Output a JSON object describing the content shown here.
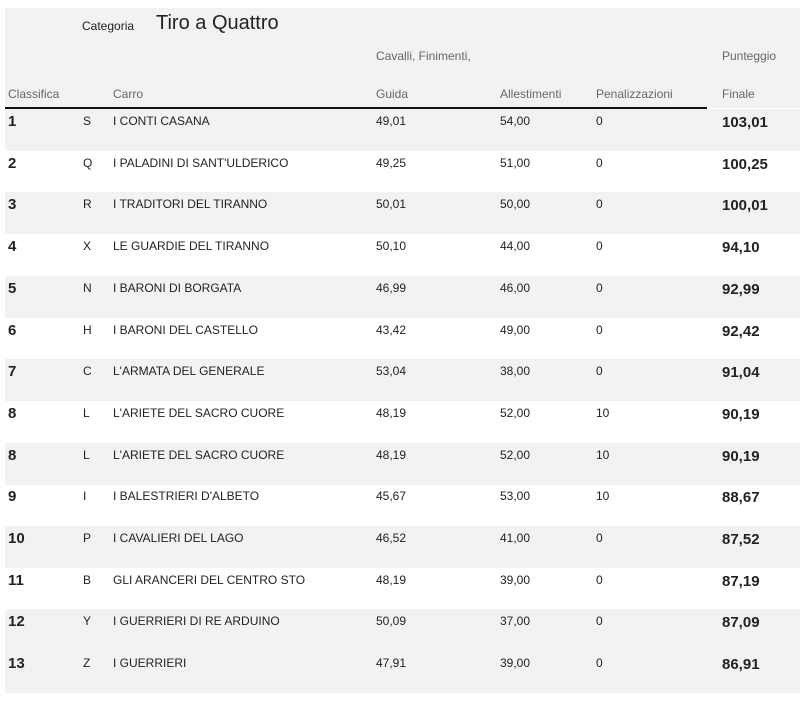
{
  "header": {
    "categoria_label": "Categoria",
    "categoria": "Tiro a Quattro",
    "columns": {
      "classifica": "Classifica",
      "carro": "Carro",
      "guida_1": "Cavalli, Finimenti,",
      "guida_2": "Guida",
      "allestimenti": "Allestimenti",
      "penalizzazioni": "Penalizzazioni",
      "finale_1": "Punteggio",
      "finale_2": "Finale"
    }
  },
  "rows": [
    {
      "rank": "1",
      "code": "S",
      "carro": "I CONTI CASANA",
      "guida": "49,01",
      "allestimenti": "54,00",
      "penalizzazioni": "0",
      "finale": "103,01"
    },
    {
      "rank": "2",
      "code": "Q",
      "carro": "I PALADINI DI SANT'ULDERICO",
      "guida": "49,25",
      "allestimenti": "51,00",
      "penalizzazioni": "0",
      "finale": "100,25"
    },
    {
      "rank": "3",
      "code": "R",
      "carro": "I TRADITORI DEL TIRANNO",
      "guida": "50,01",
      "allestimenti": "50,00",
      "penalizzazioni": "0",
      "finale": "100,01"
    },
    {
      "rank": "4",
      "code": "X",
      "carro": "LE GUARDIE DEL TIRANNO",
      "guida": "50,10",
      "allestimenti": "44,00",
      "penalizzazioni": "0",
      "finale": "94,10"
    },
    {
      "rank": "5",
      "code": "N",
      "carro": "I BARONI DI BORGATA",
      "guida": "46,99",
      "allestimenti": "46,00",
      "penalizzazioni": "0",
      "finale": "92,99"
    },
    {
      "rank": "6",
      "code": "H",
      "carro": "I BARONI DEL CASTELLO",
      "guida": "43,42",
      "allestimenti": "49,00",
      "penalizzazioni": "0",
      "finale": "92,42"
    },
    {
      "rank": "7",
      "code": "C",
      "carro": "L'ARMATA DEL GENERALE",
      "guida": "53,04",
      "allestimenti": "38,00",
      "penalizzazioni": "0",
      "finale": "91,04"
    },
    {
      "rank": "8",
      "code": "L",
      "carro": "L'ARIETE DEL SACRO CUORE",
      "guida": "48,19",
      "allestimenti": "52,00",
      "penalizzazioni": "10",
      "finale": "90,19"
    },
    {
      "rank": "8",
      "code": "L",
      "carro": "L'ARIETE DEL SACRO CUORE",
      "guida": "48,19",
      "allestimenti": "52,00",
      "penalizzazioni": "10",
      "finale": "90,19"
    },
    {
      "rank": "9",
      "code": "I",
      "carro": "I BALESTRIERI D'ALBETO",
      "guida": "45,67",
      "allestimenti": "53,00",
      "penalizzazioni": "10",
      "finale": "88,67"
    },
    {
      "rank": "10",
      "code": "P",
      "carro": "I CAVALIERI DEL LAGO",
      "guida": "46,52",
      "allestimenti": "41,00",
      "penalizzazioni": "0",
      "finale": "87,52"
    },
    {
      "rank": "11",
      "code": "B",
      "carro": "GLI ARANCERI DEL CENTRO STO",
      "guida": "48,19",
      "allestimenti": "39,00",
      "penalizzazioni": "0",
      "finale": "87,19"
    },
    {
      "rank": "12",
      "code": "Y",
      "carro": "I GUERRIERI DI RE ARDUINO",
      "guida": "50,09",
      "allestimenti": "37,00",
      "penalizzazioni": "0",
      "finale": "87,09"
    },
    {
      "rank": "13",
      "code": "Z",
      "carro": "I GUERRIERI",
      "guida": "47,91",
      "allestimenti": "39,00",
      "penalizzazioni": "0",
      "finale": "86,91"
    }
  ]
}
